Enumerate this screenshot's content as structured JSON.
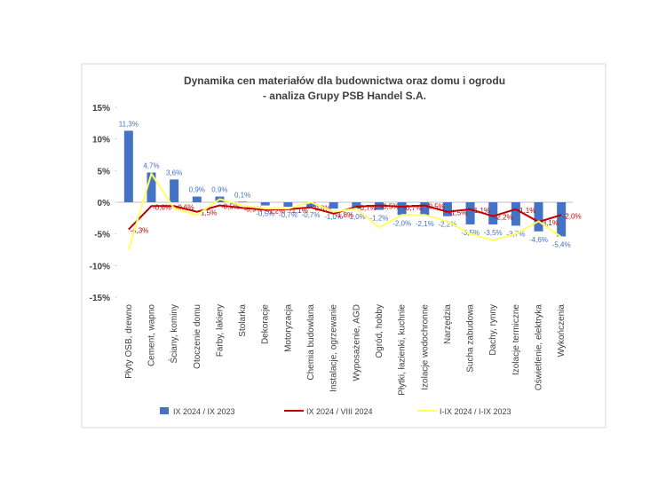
{
  "chart_data": {
    "type": "bar",
    "title": "Dynamika cen materiałów dla budownictwa oraz domu i ogrodu",
    "subtitle": "- analiza Grupy PSB Handel S.A.",
    "categories": [
      "Płyty OSB, drewno",
      "Cement, wapno",
      "Ściany, kominy",
      "Otoczenie domu",
      "Farby, lakiery",
      "Stolarka",
      "Dekoracje",
      "Motoryzacja",
      "Chemia budowlana",
      "Instalacje, ogrzewanie",
      "Wyposażenie, AGD",
      "Ogród, hobby",
      "Płytki, łazienki, kuchnie",
      "Izolacje wodochronne",
      "Narzędzia",
      "Sucha zabudowa",
      "Dachy, rynny",
      "Izolacje termiczne",
      "Oświetlenie, elektryka",
      "Wykończenia"
    ],
    "series": [
      {
        "name": "IX 2024 / IX 2023",
        "type": "bar",
        "color": "#4472c4",
        "values": [
          11.3,
          4.7,
          3.6,
          0.9,
          0.9,
          0.1,
          -0.5,
          -0.7,
          -0.7,
          -1.0,
          -1.0,
          -1.2,
          -2.0,
          -2.1,
          -2.2,
          -3.5,
          -3.5,
          -3.7,
          -4.6,
          -5.4
        ],
        "value_labels": [
          "11,3%",
          "4,7%",
          "3,6%",
          "0,9%",
          "0,9%",
          "0,1%",
          "-0,5%",
          "-0,7%",
          "-0,7%",
          "-1,0%",
          "-1,0%",
          "-1,2%",
          "-2,0%",
          "-2,1%",
          "-2,2%",
          "-3,5%",
          "-3,5%",
          "-3,7%",
          "-4,6%",
          "-5,4%"
        ]
      },
      {
        "name": "IX 2024 / VIII 2024",
        "type": "line",
        "color": "#c00000",
        "values": [
          -4.3,
          -0.6,
          -0.6,
          -1.5,
          -0.5,
          -0.9,
          -1.2,
          -1.1,
          -0.8,
          -1.8,
          -0.7,
          -0.5,
          -0.7,
          -0.5,
          -1.5,
          -1.1,
          -2.2,
          -1.1,
          -3.1,
          -2.0
        ],
        "value_labels": [
          "-4,3%",
          "-0,6%",
          "-0,6%",
          "-1,5%",
          "-0,5%",
          "-0,9%",
          "-1,2%",
          "-1,1%",
          "-0,8%",
          "-1,8%",
          "-0,7%",
          "-0,5%",
          "-0,7%",
          "-0,5%",
          "-1,5%",
          "-1,1%",
          "-2,2%",
          "-1,1%",
          "-3,1%",
          "-2,0%"
        ]
      },
      {
        "name": "I-IX 2024 / I-IX 2023",
        "type": "line",
        "color": "#ffff66",
        "values": [
          -7.5,
          4.5,
          -1.0,
          -2.0,
          0.5,
          -0.5,
          -1.0,
          -1.0,
          0.0,
          -1.5,
          -1.0,
          -4.0,
          -2.0,
          -2.0,
          -3.0,
          -5.0,
          -6.0,
          -5.0,
          -3.0,
          -5.5
        ]
      }
    ],
    "ylim": [
      -15,
      15
    ],
    "yticks": [
      {
        "value": -15,
        "label": "-15%"
      },
      {
        "value": -10,
        "label": "-10%"
      },
      {
        "value": -5,
        "label": "-5%"
      },
      {
        "value": 0,
        "label": "0%"
      },
      {
        "value": 5,
        "label": "5%"
      },
      {
        "value": 10,
        "label": "10%"
      },
      {
        "value": 15,
        "label": "15%"
      }
    ],
    "legend": "bottom"
  }
}
